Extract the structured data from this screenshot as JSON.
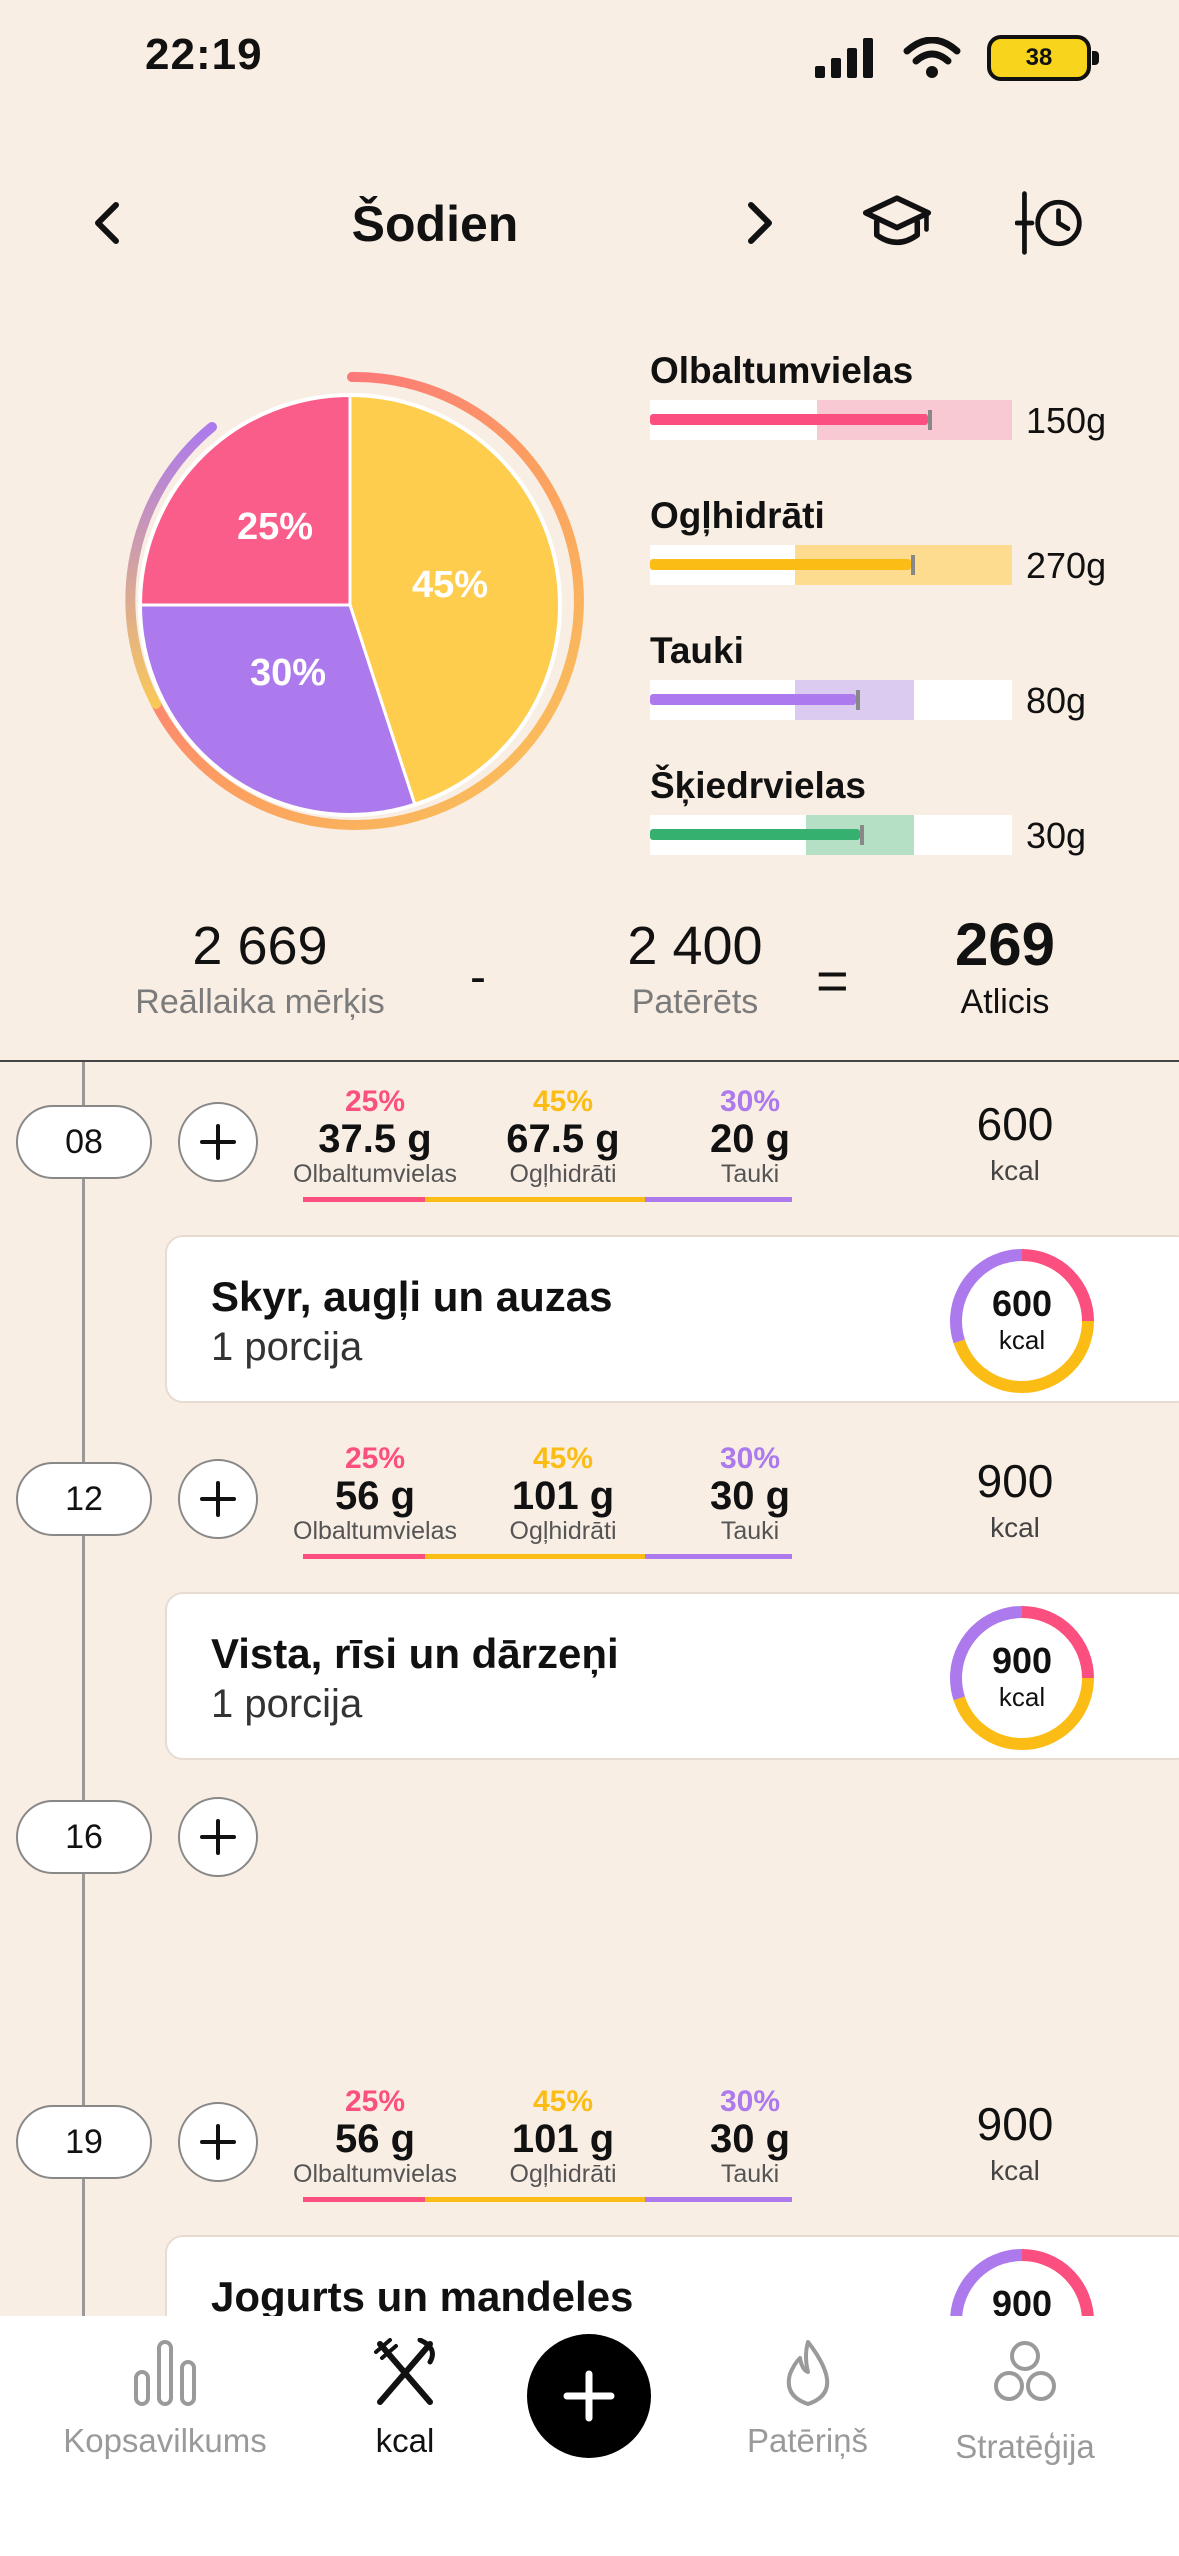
{
  "status": {
    "time": "22:19",
    "battery": "38"
  },
  "header": {
    "title": "Šodien"
  },
  "pie": {
    "slices": [
      {
        "label": "25%",
        "value": 25,
        "color": "#fb5d8a"
      },
      {
        "label": "45%",
        "value": 45,
        "color": "#ffcd4d"
      },
      {
        "label": "30%",
        "value": 30,
        "color": "#ac7aec"
      }
    ]
  },
  "macros": [
    {
      "name": "Olbaltumvielas",
      "amount": "150g",
      "color": "#fb4f7f",
      "zone": "#f8c8d3",
      "progress": 0.98
    },
    {
      "name": "Ogļhidrāti",
      "amount": "270g",
      "color": "#fbbd15",
      "zone": "#fddb8f",
      "progress": 0.95
    },
    {
      "name": "Tauki",
      "amount": "80g",
      "color": "#ac7aec",
      "zone": "#dccbf1",
      "progress": 0.95
    },
    {
      "name": "Šķiedrvielas",
      "amount": "30g",
      "color": "#36b06f",
      "zone": "#b5e0c6",
      "progress": 0.95
    }
  ],
  "summary": {
    "target_value": "2 669",
    "target_label": "Reāllaika mērķis",
    "minus": "-",
    "consumed_value": "2 400",
    "consumed_label": "Patērēts",
    "equals": "=",
    "remaining_value": "269",
    "remaining_label": "Atlicis"
  },
  "slots": [
    {
      "time": "08",
      "p_pct": "25%",
      "p_val": "37.5 g",
      "p_lbl": "Olbaltumvielas",
      "c_pct": "45%",
      "c_val": "67.5 g",
      "c_lbl": "Ogļhidrāti",
      "f_pct": "30%",
      "f_val": "20 g",
      "f_lbl": "Tauki",
      "kcal": "600",
      "kcal_unit": "kcal",
      "meal": {
        "name": "Skyr, augļi un auzas",
        "portion": "1 porcija",
        "kcal": "600",
        "unit": "kcal"
      }
    },
    {
      "time": "12",
      "p_pct": "25%",
      "p_val": "56 g",
      "p_lbl": "Olbaltumvielas",
      "c_pct": "45%",
      "c_val": "101 g",
      "c_lbl": "Ogļhidrāti",
      "f_pct": "30%",
      "f_val": "30 g",
      "f_lbl": "Tauki",
      "kcal": "900",
      "kcal_unit": "kcal",
      "meal": {
        "name": "Vista, rīsi un dārzeņi",
        "portion": "1 porcija",
        "kcal": "900",
        "unit": "kcal"
      }
    },
    {
      "time": "16"
    },
    {
      "time": "19",
      "p_pct": "25%",
      "p_val": "56 g",
      "p_lbl": "Olbaltumvielas",
      "c_pct": "45%",
      "c_val": "101 g",
      "c_lbl": "Ogļhidrāti",
      "f_pct": "30%",
      "f_val": "30 g",
      "f_lbl": "Tauki",
      "kcal": "900",
      "kcal_unit": "kcal",
      "meal": {
        "name": "Jogurts un mandeles",
        "kcal": "900"
      }
    }
  ],
  "tabs": [
    {
      "label": "Kopsavilkums",
      "icon": "bar-chart-icon"
    },
    {
      "label": "kcal",
      "icon": "fork-knife-icon",
      "active": true
    },
    {
      "label": "",
      "icon": "plus-icon"
    },
    {
      "label": "Patēriņš",
      "icon": "flame-icon"
    },
    {
      "label": "Stratēģija",
      "icon": "circles-icon"
    }
  ],
  "colors": {
    "protein": "#fb4f7f",
    "carbs": "#fbbd15",
    "fat": "#ac7aec",
    "fiber": "#36b06f",
    "background": "#f9eee4"
  }
}
